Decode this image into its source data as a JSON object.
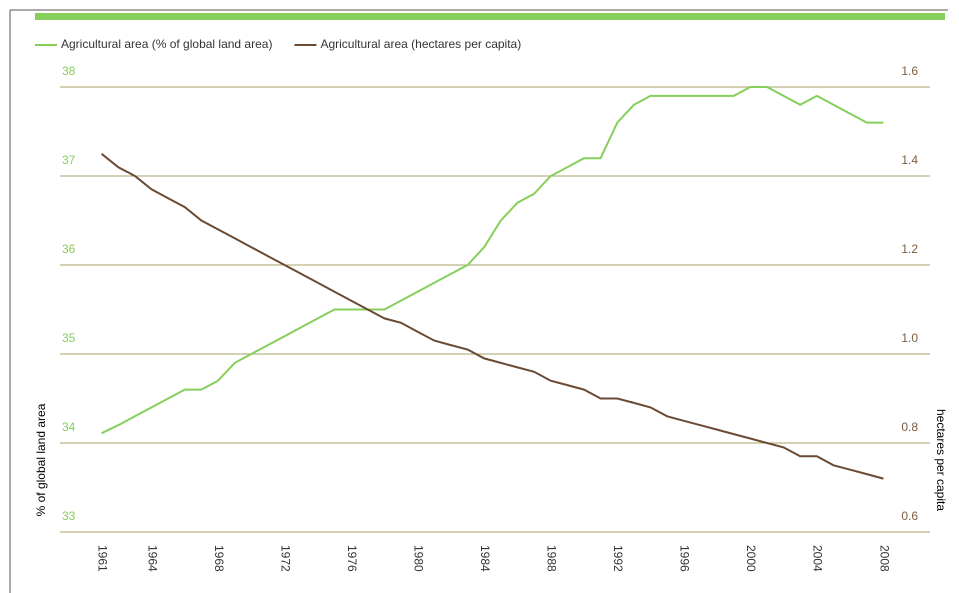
{
  "chart_data": {
    "type": "line",
    "x": [
      1961,
      1962,
      1963,
      1964,
      1965,
      1966,
      1967,
      1968,
      1969,
      1970,
      1971,
      1972,
      1973,
      1974,
      1975,
      1976,
      1977,
      1978,
      1979,
      1980,
      1981,
      1982,
      1983,
      1984,
      1985,
      1986,
      1987,
      1988,
      1989,
      1990,
      1991,
      1992,
      1993,
      1994,
      1995,
      1996,
      1997,
      1998,
      1999,
      2000,
      2001,
      2002,
      2003,
      2004,
      2005,
      2006,
      2007,
      2008
    ],
    "series": [
      {
        "name": "Agricultural area (% of global land area)",
        "color": "#86cf5a",
        "axis": "y",
        "values": [
          34.11,
          34.2,
          34.3,
          34.4,
          34.5,
          34.6,
          34.6,
          34.7,
          34.9,
          35.0,
          35.1,
          35.2,
          35.3,
          35.4,
          35.5,
          35.5,
          35.5,
          35.5,
          35.6,
          35.7,
          35.8,
          35.9,
          36.0,
          36.2,
          36.5,
          36.7,
          36.8,
          37.0,
          37.1,
          37.2,
          37.2,
          37.6,
          37.8,
          37.9,
          37.9,
          37.9,
          37.9,
          37.9,
          37.9,
          38.0,
          38.0,
          37.9,
          37.8,
          37.9,
          37.8,
          37.7,
          37.6,
          37.6
        ]
      },
      {
        "name": "Agricultural area (hectares per capita)",
        "color": "#6b4a34",
        "axis": "y2",
        "values": [
          1.45,
          1.42,
          1.4,
          1.37,
          1.35,
          1.33,
          1.3,
          1.28,
          1.26,
          1.24,
          1.22,
          1.2,
          1.18,
          1.16,
          1.14,
          1.12,
          1.1,
          1.08,
          1.07,
          1.05,
          1.03,
          1.02,
          1.01,
          0.99,
          0.98,
          0.97,
          0.96,
          0.94,
          0.93,
          0.92,
          0.9,
          0.9,
          0.89,
          0.88,
          0.86,
          0.85,
          0.84,
          0.83,
          0.82,
          0.81,
          0.8,
          0.79,
          0.77,
          0.77,
          0.75,
          0.74,
          0.73,
          0.72
        ]
      }
    ],
    "ylabel": "% of global land area",
    "y2label": "hectares per capita",
    "xlim": [
      1958.5,
      2010.8
    ],
    "xticks": [
      1961,
      1964,
      1968,
      1972,
      1976,
      1980,
      1984,
      1988,
      1992,
      1996,
      2000,
      2004,
      2008
    ],
    "ylim": [
      33,
      38
    ],
    "yticks": [
      33,
      34,
      35,
      36,
      37,
      38
    ],
    "y2lim": [
      0.6,
      1.6
    ],
    "y2ticks": [
      0.6,
      0.8,
      {
        "value": 1,
        "label": "1.0"
      },
      1.2,
      1.4,
      1.6
    ],
    "grid": true,
    "legend": "top-left"
  }
}
